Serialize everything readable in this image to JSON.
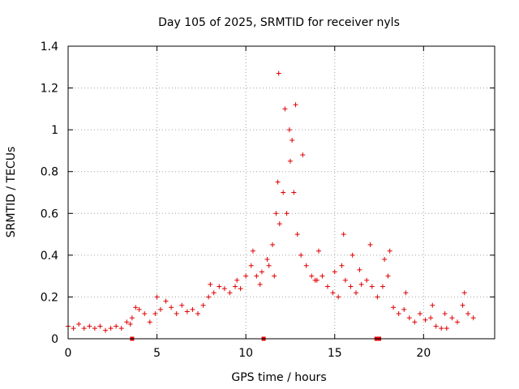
{
  "chart_data": {
    "type": "scatter",
    "title": "Day 105 of 2025, SRMTID for receiver nyls",
    "xlabel": "GPS time / hours",
    "ylabel": "SRMTID / TECUs",
    "xlim": [
      0,
      24
    ],
    "ylim": [
      0,
      1.4
    ],
    "xticks": [
      0,
      5,
      10,
      15,
      20
    ],
    "xtick_labels": [
      "0",
      "5",
      "10",
      "15",
      "20"
    ],
    "yticks": [
      0,
      0.2,
      0.4,
      0.6,
      0.8,
      1.0,
      1.2,
      1.4
    ],
    "ytick_labels": [
      "0",
      "0.2",
      "0.4",
      "0.6",
      "0.8",
      "1",
      "1.2",
      "1.4"
    ],
    "grid": true,
    "marker": "+",
    "color": "#e00000",
    "series": [
      {
        "name": "SRMTID",
        "x": [
          0.0,
          0.3,
          0.6,
          0.9,
          1.2,
          1.5,
          1.8,
          2.1,
          2.4,
          2.7,
          3.0,
          3.3,
          3.6,
          3.8,
          4.0,
          4.3,
          4.6,
          4.9,
          5.2,
          5.5,
          5.8,
          6.1,
          6.4,
          6.7,
          7.0,
          7.3,
          7.6,
          7.9,
          8.2,
          8.5,
          8.8,
          9.1,
          9.4,
          9.7,
          10.0,
          10.3,
          10.6,
          10.9,
          11.2,
          11.5,
          11.7,
          11.8,
          11.9,
          12.1,
          12.3,
          12.5,
          12.6,
          12.7,
          12.9,
          13.1,
          13.4,
          13.7,
          14.0,
          14.3,
          14.6,
          14.9,
          15.2,
          15.4,
          15.6,
          15.9,
          16.2,
          16.5,
          16.8,
          17.1,
          17.4,
          17.7,
          18.0,
          18.3,
          18.6,
          18.9,
          19.2,
          19.5,
          19.8,
          20.1,
          20.4,
          20.7,
          21.0,
          21.3,
          21.6,
          21.9,
          22.2,
          22.5,
          22.8,
          3.5,
          5.0,
          8.0,
          9.5,
          10.4,
          10.8,
          11.3,
          11.6,
          11.85,
          12.2,
          12.45,
          12.8,
          13.2,
          13.9,
          14.1,
          15.0,
          15.5,
          16.0,
          16.4,
          17.0,
          17.8,
          18.1,
          19.0,
          20.5,
          21.2,
          22.3
        ],
        "y": [
          0.06,
          0.05,
          0.07,
          0.05,
          0.06,
          0.05,
          0.06,
          0.04,
          0.05,
          0.06,
          0.05,
          0.08,
          0.1,
          0.15,
          0.14,
          0.12,
          0.08,
          0.12,
          0.14,
          0.18,
          0.15,
          0.12,
          0.16,
          0.13,
          0.14,
          0.12,
          0.16,
          0.2,
          0.22,
          0.25,
          0.24,
          0.22,
          0.25,
          0.24,
          0.3,
          0.35,
          0.3,
          0.32,
          0.38,
          0.45,
          0.6,
          0.75,
          0.55,
          0.7,
          0.6,
          0.85,
          0.95,
          0.7,
          0.5,
          0.4,
          0.35,
          0.3,
          0.28,
          0.3,
          0.25,
          0.22,
          0.2,
          0.35,
          0.28,
          0.25,
          0.22,
          0.26,
          0.28,
          0.25,
          0.2,
          0.25,
          0.3,
          0.15,
          0.12,
          0.14,
          0.1,
          0.08,
          0.12,
          0.09,
          0.1,
          0.06,
          0.05,
          0.05,
          0.1,
          0.08,
          0.16,
          0.12,
          0.1,
          0.07,
          0.2,
          0.26,
          0.28,
          0.42,
          0.26,
          0.35,
          0.3,
          1.27,
          1.1,
          1.0,
          1.12,
          0.88,
          0.28,
          0.42,
          0.32,
          0.5,
          0.4,
          0.33,
          0.45,
          0.38,
          0.42,
          0.22,
          0.16,
          0.12,
          0.22
        ],
        "min_markers_at_zero": [
          3.6,
          11.0,
          17.35,
          17.5
        ]
      }
    ]
  }
}
